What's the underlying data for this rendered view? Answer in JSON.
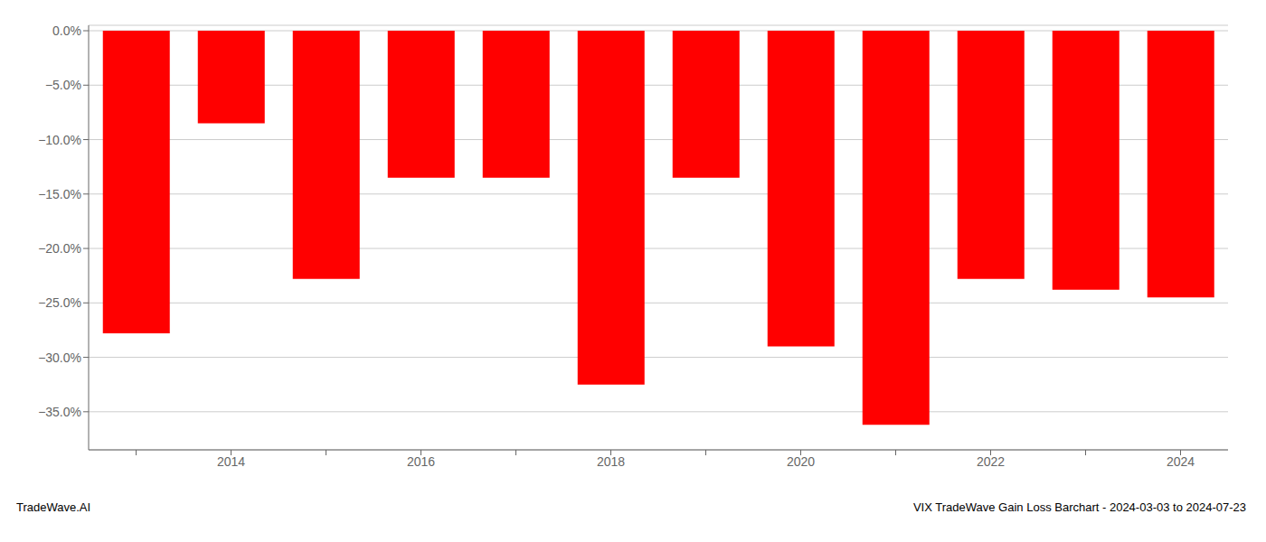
{
  "chart_data": {
    "type": "bar",
    "categories": [
      null,
      "2014",
      null,
      "2016",
      null,
      "2018",
      null,
      "2020",
      null,
      "2022",
      null,
      "2024"
    ],
    "values": [
      -0.278,
      -0.085,
      -0.228,
      -0.135,
      -0.135,
      -0.325,
      -0.135,
      -0.29,
      -0.362,
      -0.228,
      -0.238,
      -0.245
    ],
    "color": "#ff0000",
    "ylim": [
      -0.385,
      0.005
    ],
    "yticks": [
      {
        "value": 0.0,
        "label": "0.0%"
      },
      {
        "value": -0.05,
        "label": "−5.0%"
      },
      {
        "value": -0.1,
        "label": "−10.0%"
      },
      {
        "value": -0.15,
        "label": "−15.0%"
      },
      {
        "value": -0.2,
        "label": "−20.0%"
      },
      {
        "value": -0.25,
        "label": "−25.0%"
      },
      {
        "value": -0.3,
        "label": "−30.0%"
      },
      {
        "value": -0.35,
        "label": "−35.0%"
      }
    ],
    "grid": true,
    "annotations": [
      "TradeWave.AI",
      "VIX TradeWave Gain Loss Barchart - 2024-03-03 to 2024-07-23"
    ]
  }
}
